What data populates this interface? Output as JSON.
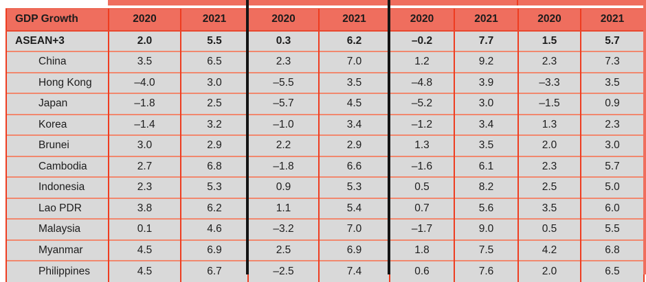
{
  "table": {
    "header": {
      "label": "GDP Growth",
      "year_columns": [
        "2020",
        "2021",
        "2020",
        "2021",
        "2020",
        "2021",
        "2020",
        "2021"
      ]
    },
    "rows": [
      {
        "name": "ASEAN+3",
        "bold": true,
        "values": [
          "2.0",
          "5.5",
          "0.3",
          "6.2",
          "–0.2",
          "7.7",
          "1.5",
          "5.7"
        ]
      },
      {
        "name": "China",
        "bold": false,
        "values": [
          "3.5",
          "6.5",
          "2.3",
          "7.0",
          "1.2",
          "9.2",
          "2.3",
          "7.3"
        ]
      },
      {
        "name": "Hong Kong",
        "bold": false,
        "values": [
          "–4.0",
          "3.0",
          "–5.5",
          "3.5",
          "–4.8",
          "3.9",
          "–3.3",
          "3.5"
        ]
      },
      {
        "name": "Japan",
        "bold": false,
        "values": [
          "–1.8",
          "2.5",
          "–5.7",
          "4.5",
          "–5.2",
          "3.0",
          "–1.5",
          "0.9"
        ]
      },
      {
        "name": "Korea",
        "bold": false,
        "values": [
          "–1.4",
          "3.2",
          "–1.0",
          "3.4",
          "–1.2",
          "3.4",
          "1.3",
          "2.3"
        ]
      },
      {
        "name": "Brunei",
        "bold": false,
        "values": [
          "3.0",
          "2.9",
          "2.2",
          "2.9",
          "1.3",
          "3.5",
          "2.0",
          "3.0"
        ]
      },
      {
        "name": "Cambodia",
        "bold": false,
        "values": [
          "2.7",
          "6.8",
          "–1.8",
          "6.6",
          "–1.6",
          "6.1",
          "2.3",
          "5.7"
        ]
      },
      {
        "name": "Indonesia",
        "bold": false,
        "values": [
          "2.3",
          "5.3",
          "0.9",
          "5.3",
          "0.5",
          "8.2",
          "2.5",
          "5.0"
        ]
      },
      {
        "name": "Lao PDR",
        "bold": false,
        "values": [
          "3.8",
          "6.2",
          "1.1",
          "5.4",
          "0.7",
          "5.6",
          "3.5",
          "6.0"
        ]
      },
      {
        "name": "Malaysia",
        "bold": false,
        "values": [
          "0.1",
          "4.6",
          "–3.2",
          "7.0",
          "–1.7",
          "9.0",
          "0.5",
          "5.5"
        ]
      },
      {
        "name": "Myanmar",
        "bold": false,
        "values": [
          "4.5",
          "6.9",
          "2.5",
          "6.9",
          "1.8",
          "7.5",
          "4.2",
          "6.8"
        ]
      },
      {
        "name": "Philippines",
        "bold": false,
        "values": [
          "4.5",
          "6.7",
          "–2.5",
          "7.4",
          "0.6",
          "7.6",
          "2.0",
          "6.5"
        ]
      }
    ]
  },
  "chart_data": {
    "type": "table",
    "title": "GDP Growth",
    "column_groups": 4,
    "columns": [
      "2020",
      "2021",
      "2020",
      "2021",
      "2020",
      "2021",
      "2020",
      "2021"
    ],
    "row_labels": [
      "ASEAN+3",
      "China",
      "Hong Kong",
      "Japan",
      "Korea",
      "Brunei",
      "Cambodia",
      "Indonesia",
      "Lao PDR",
      "Malaysia",
      "Myanmar",
      "Philippines"
    ],
    "values": [
      [
        2.0,
        5.5,
        0.3,
        6.2,
        -0.2,
        7.7,
        1.5,
        5.7
      ],
      [
        3.5,
        6.5,
        2.3,
        7.0,
        1.2,
        9.2,
        2.3,
        7.3
      ],
      [
        -4.0,
        3.0,
        -5.5,
        3.5,
        -4.8,
        3.9,
        -3.3,
        3.5
      ],
      [
        -1.8,
        2.5,
        -5.7,
        4.5,
        -5.2,
        3.0,
        -1.5,
        0.9
      ],
      [
        -1.4,
        3.2,
        -1.0,
        3.4,
        -1.2,
        3.4,
        1.3,
        2.3
      ],
      [
        3.0,
        2.9,
        2.2,
        2.9,
        1.3,
        3.5,
        2.0,
        3.0
      ],
      [
        2.7,
        6.8,
        -1.8,
        6.6,
        -1.6,
        6.1,
        2.3,
        5.7
      ],
      [
        2.3,
        5.3,
        0.9,
        5.3,
        0.5,
        8.2,
        2.5,
        5.0
      ],
      [
        3.8,
        6.2,
        1.1,
        5.4,
        0.7,
        5.6,
        3.5,
        6.0
      ],
      [
        0.1,
        4.6,
        -3.2,
        7.0,
        -1.7,
        9.0,
        0.5,
        5.5
      ],
      [
        4.5,
        6.9,
        2.5,
        6.9,
        1.8,
        7.5,
        4.2,
        6.8
      ],
      [
        4.5,
        6.7,
        -2.5,
        7.4,
        0.6,
        7.6,
        2.0,
        6.5
      ]
    ]
  },
  "colors": {
    "salmon": "#ef6e5e",
    "row-gray": "#d9d9d9",
    "h-line": "#f1876d",
    "v-line": "#ee3c20",
    "header-line": "#e8472e",
    "black-div": "#141414",
    "text": "#1c1c1c"
  }
}
